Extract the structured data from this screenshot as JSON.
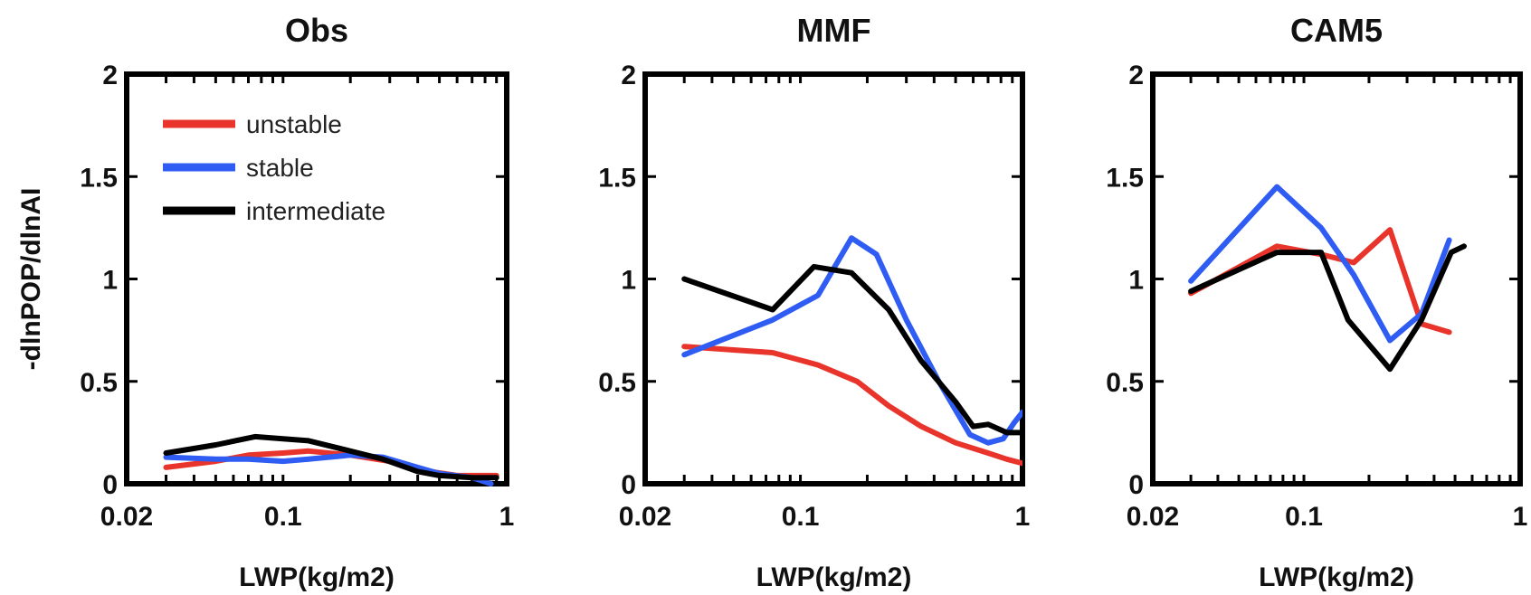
{
  "chart_data": [
    {
      "type": "line",
      "title": "Obs",
      "xlabel": "LWP(kg/m2)",
      "ylabel": "-dlnPOP/dlnAI",
      "xscale": "log",
      "xlim": [
        0.02,
        1
      ],
      "ylim": [
        0,
        2
      ],
      "xticks": [
        {
          "value": 0.02,
          "label": "0.02"
        },
        {
          "value": 0.1,
          "label": "0.1"
        },
        {
          "value": 1,
          "label": "1"
        }
      ],
      "yticks": [
        {
          "value": 0,
          "label": "0"
        },
        {
          "value": 0.5,
          "label": "0.5"
        },
        {
          "value": 1,
          "label": "1"
        },
        {
          "value": 1.5,
          "label": "1.5"
        },
        {
          "value": 2,
          "label": "2"
        }
      ],
      "legend": "top-left",
      "series": [
        {
          "name": "unstable",
          "color": "#e8342a",
          "x": [
            0.03,
            0.05,
            0.07,
            0.1,
            0.13,
            0.2,
            0.3,
            0.45,
            0.6,
            0.9
          ],
          "y": [
            0.08,
            0.11,
            0.14,
            0.15,
            0.16,
            0.14,
            0.11,
            0.06,
            0.04,
            0.04
          ]
        },
        {
          "name": "stable",
          "color": "#2f5cf2",
          "x": [
            0.03,
            0.05,
            0.07,
            0.1,
            0.13,
            0.2,
            0.28,
            0.4,
            0.5,
            0.7,
            0.85
          ],
          "y": [
            0.13,
            0.12,
            0.12,
            0.11,
            0.12,
            0.14,
            0.13,
            0.08,
            0.05,
            0.03,
            0.0
          ]
        },
        {
          "name": "intermediate",
          "color": "#000000",
          "x": [
            0.03,
            0.05,
            0.075,
            0.1,
            0.13,
            0.2,
            0.28,
            0.4,
            0.5,
            0.7,
            0.9
          ],
          "y": [
            0.15,
            0.19,
            0.23,
            0.22,
            0.21,
            0.16,
            0.12,
            0.06,
            0.04,
            0.03,
            0.03
          ]
        }
      ]
    },
    {
      "type": "line",
      "title": "MMF",
      "xlabel": "LWP(kg/m2)",
      "ylabel": "",
      "xscale": "log",
      "xlim": [
        0.02,
        1
      ],
      "ylim": [
        0,
        2
      ],
      "xticks": [
        {
          "value": 0.02,
          "label": "0.02"
        },
        {
          "value": 0.1,
          "label": "0.1"
        },
        {
          "value": 1,
          "label": "1"
        }
      ],
      "yticks": [
        {
          "value": 0,
          "label": "0"
        },
        {
          "value": 0.5,
          "label": "0.5"
        },
        {
          "value": 1,
          "label": "1"
        },
        {
          "value": 1.5,
          "label": "1.5"
        },
        {
          "value": 2,
          "label": "2"
        }
      ],
      "series": [
        {
          "name": "unstable",
          "color": "#e8342a",
          "x": [
            0.03,
            0.075,
            0.12,
            0.18,
            0.25,
            0.35,
            0.5,
            0.7,
            0.85,
            1.0
          ],
          "y": [
            0.67,
            0.64,
            0.58,
            0.5,
            0.38,
            0.28,
            0.2,
            0.15,
            0.12,
            0.1
          ]
        },
        {
          "name": "stable",
          "color": "#2f5cf2",
          "x": [
            0.03,
            0.075,
            0.12,
            0.17,
            0.22,
            0.3,
            0.42,
            0.58,
            0.7,
            0.82,
            0.92,
            1.0
          ],
          "y": [
            0.63,
            0.8,
            0.92,
            1.2,
            1.12,
            0.8,
            0.5,
            0.24,
            0.2,
            0.22,
            0.3,
            0.35
          ]
        },
        {
          "name": "intermediate",
          "color": "#000000",
          "x": [
            0.03,
            0.075,
            0.115,
            0.17,
            0.25,
            0.35,
            0.5,
            0.6,
            0.7,
            0.85,
            1.0
          ],
          "y": [
            1.0,
            0.85,
            1.06,
            1.03,
            0.85,
            0.6,
            0.4,
            0.28,
            0.29,
            0.25,
            0.25
          ]
        }
      ]
    },
    {
      "type": "line",
      "title": "CAM5",
      "xlabel": "LWP(kg/m2)",
      "ylabel": "",
      "xscale": "log",
      "xlim": [
        0.02,
        1
      ],
      "ylim": [
        0,
        2
      ],
      "xticks": [
        {
          "value": 0.02,
          "label": "0.02"
        },
        {
          "value": 0.1,
          "label": "0.1"
        },
        {
          "value": 1,
          "label": "1"
        }
      ],
      "yticks": [
        {
          "value": 0,
          "label": "0"
        },
        {
          "value": 0.5,
          "label": "0.5"
        },
        {
          "value": 1,
          "label": "1"
        },
        {
          "value": 1.5,
          "label": "1.5"
        },
        {
          "value": 2,
          "label": "2"
        }
      ],
      "series": [
        {
          "name": "unstable",
          "color": "#e8342a",
          "x": [
            0.03,
            0.075,
            0.12,
            0.17,
            0.25,
            0.35,
            0.47
          ],
          "y": [
            0.93,
            1.16,
            1.12,
            1.08,
            1.24,
            0.78,
            0.74
          ]
        },
        {
          "name": "stable",
          "color": "#2f5cf2",
          "x": [
            0.03,
            0.075,
            0.12,
            0.17,
            0.25,
            0.35,
            0.47
          ],
          "y": [
            0.99,
            1.45,
            1.25,
            1.02,
            0.7,
            0.83,
            1.19
          ]
        },
        {
          "name": "intermediate",
          "color": "#000000",
          "x": [
            0.03,
            0.075,
            0.12,
            0.16,
            0.25,
            0.35,
            0.48,
            0.55
          ],
          "y": [
            0.94,
            1.13,
            1.13,
            0.8,
            0.56,
            0.8,
            1.13,
            1.16
          ]
        }
      ]
    }
  ]
}
